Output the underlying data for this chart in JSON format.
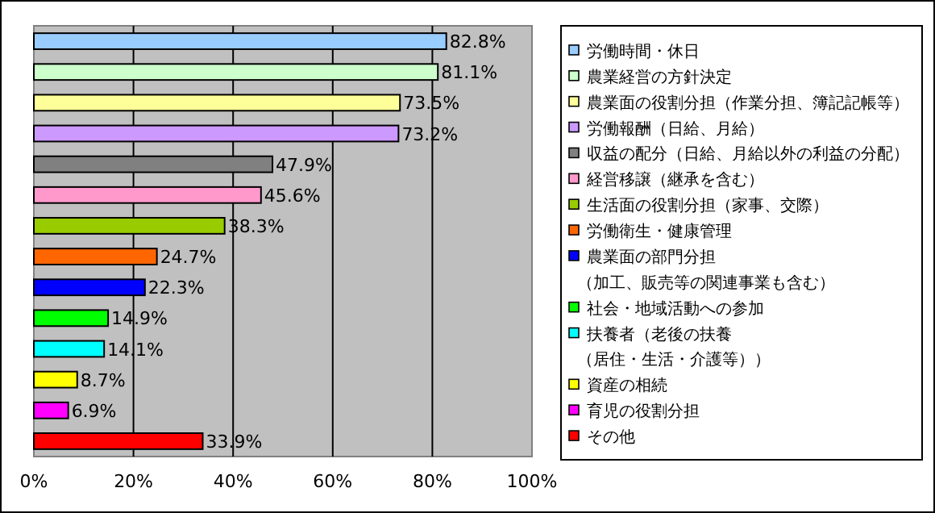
{
  "chart_data": {
    "type": "bar",
    "orientation": "horizontal",
    "categories": [
      null,
      null,
      null,
      null,
      null,
      null,
      null,
      null,
      null,
      null,
      null,
      null,
      null,
      null
    ],
    "series": [
      {
        "name": "労働時間・休日",
        "color": "#99ccff",
        "values": [
          82.8,
          null,
          null,
          null,
          null,
          null,
          null,
          null,
          null,
          null,
          null,
          null,
          null,
          null
        ],
        "value_labels": [
          "82.8%",
          null,
          null,
          null,
          null,
          null,
          null,
          null,
          null,
          null,
          null,
          null,
          null,
          null
        ]
      },
      {
        "name": "農業経営の方針決定",
        "color": "#ccffcc",
        "values": [
          null,
          81.1,
          null,
          null,
          null,
          null,
          null,
          null,
          null,
          null,
          null,
          null,
          null,
          null
        ],
        "value_labels": [
          null,
          "81.1%",
          null,
          null,
          null,
          null,
          null,
          null,
          null,
          null,
          null,
          null,
          null,
          null
        ]
      },
      {
        "name": "農業面の役割分担（作業分担、簿記記帳等）",
        "color": "#ffff99",
        "values": [
          null,
          null,
          73.5,
          null,
          null,
          null,
          null,
          null,
          null,
          null,
          null,
          null,
          null,
          null
        ],
        "value_labels": [
          null,
          null,
          "73.5%",
          null,
          null,
          null,
          null,
          null,
          null,
          null,
          null,
          null,
          null,
          null
        ]
      },
      {
        "name": "労働報酬（日給、月給）",
        "color": "#cc99ff",
        "values": [
          null,
          null,
          null,
          73.2,
          null,
          null,
          null,
          null,
          null,
          null,
          null,
          null,
          null,
          null
        ],
        "value_labels": [
          null,
          null,
          null,
          "73.2%",
          null,
          null,
          null,
          null,
          null,
          null,
          null,
          null,
          null,
          null
        ]
      },
      {
        "name": "収益の配分（日給、月給以外の利益の分配）",
        "color": "#808080",
        "values": [
          null,
          null,
          null,
          null,
          47.9,
          null,
          null,
          null,
          null,
          null,
          null,
          null,
          null,
          null
        ],
        "value_labels": [
          null,
          null,
          null,
          null,
          "47.9%",
          null,
          null,
          null,
          null,
          null,
          null,
          null,
          null,
          null
        ]
      },
      {
        "name": "経営移譲（継承を含む）",
        "color": "#ff99cc",
        "values": [
          null,
          null,
          null,
          null,
          null,
          45.6,
          null,
          null,
          null,
          null,
          null,
          null,
          null,
          null
        ],
        "value_labels": [
          null,
          null,
          null,
          null,
          null,
          "45.6%",
          null,
          null,
          null,
          null,
          null,
          null,
          null,
          null
        ]
      },
      {
        "name": "生活面の役割分担（家事、交際）",
        "color": "#99cc00",
        "values": [
          null,
          null,
          null,
          null,
          null,
          null,
          38.3,
          null,
          null,
          null,
          null,
          null,
          null,
          null
        ],
        "value_labels": [
          null,
          null,
          null,
          null,
          null,
          null,
          "38.3%",
          null,
          null,
          null,
          null,
          null,
          null,
          null
        ]
      },
      {
        "name": "労働衛生・健康管理",
        "color": "#ff6600",
        "values": [
          null,
          null,
          null,
          null,
          null,
          null,
          null,
          24.7,
          null,
          null,
          null,
          null,
          null,
          null
        ],
        "value_labels": [
          null,
          null,
          null,
          null,
          null,
          null,
          null,
          "24.7%",
          null,
          null,
          null,
          null,
          null,
          null
        ]
      },
      {
        "name": "農業面の部門分担（加工、販売等の関連事業も含む）",
        "color": "#0000ff",
        "values": [
          null,
          null,
          null,
          null,
          null,
          null,
          null,
          null,
          22.3,
          null,
          null,
          null,
          null,
          null
        ],
        "value_labels": [
          null,
          null,
          null,
          null,
          null,
          null,
          null,
          null,
          "22.3%",
          null,
          null,
          null,
          null,
          null
        ]
      },
      {
        "name": "社会・地域活動への参加",
        "color": "#00ff00",
        "values": [
          null,
          null,
          null,
          null,
          null,
          null,
          null,
          null,
          null,
          14.9,
          null,
          null,
          null,
          null
        ],
        "value_labels": [
          null,
          null,
          null,
          null,
          null,
          null,
          null,
          null,
          null,
          "14.9%",
          null,
          null,
          null,
          null
        ]
      },
      {
        "name": "扶養者（老後の扶養（居住・生活・介護等））",
        "color": "#00ffff",
        "values": [
          null,
          null,
          null,
          null,
          null,
          null,
          null,
          null,
          null,
          null,
          14.1,
          null,
          null,
          null
        ],
        "value_labels": [
          null,
          null,
          null,
          null,
          null,
          null,
          null,
          null,
          null,
          null,
          "14.1%",
          null,
          null,
          null
        ]
      },
      {
        "name": "資産の相続",
        "color": "#ffff00",
        "values": [
          null,
          null,
          null,
          null,
          null,
          null,
          null,
          null,
          null,
          null,
          null,
          8.7,
          null,
          null
        ],
        "value_labels": [
          null,
          null,
          null,
          null,
          null,
          null,
          null,
          null,
          null,
          null,
          null,
          "8.7%",
          null,
          null
        ]
      },
      {
        "name": "育児の役割分担",
        "color": "#ff00ff",
        "values": [
          null,
          null,
          null,
          null,
          null,
          null,
          null,
          null,
          null,
          null,
          null,
          null,
          6.9,
          null
        ],
        "value_labels": [
          null,
          null,
          null,
          null,
          null,
          null,
          null,
          null,
          null,
          null,
          null,
          null,
          "6.9%",
          null
        ]
      },
      {
        "name": "その他",
        "color": "#ff0000",
        "values": [
          null,
          null,
          null,
          null,
          null,
          null,
          null,
          null,
          null,
          null,
          null,
          null,
          null,
          33.9
        ],
        "value_labels": [
          null,
          null,
          null,
          null,
          null,
          null,
          null,
          null,
          null,
          null,
          null,
          null,
          null,
          "33.9%"
        ]
      }
    ],
    "xlim": [
      0,
      100
    ],
    "xticks": [
      {
        "value": 0,
        "label": "0%"
      },
      {
        "value": 20,
        "label": "20%"
      },
      {
        "value": 40,
        "label": "40%"
      },
      {
        "value": 60,
        "label": "60%"
      },
      {
        "value": 80,
        "label": "80%"
      },
      {
        "value": 100,
        "label": "100%"
      }
    ],
    "grid": "x",
    "legend": "right"
  }
}
